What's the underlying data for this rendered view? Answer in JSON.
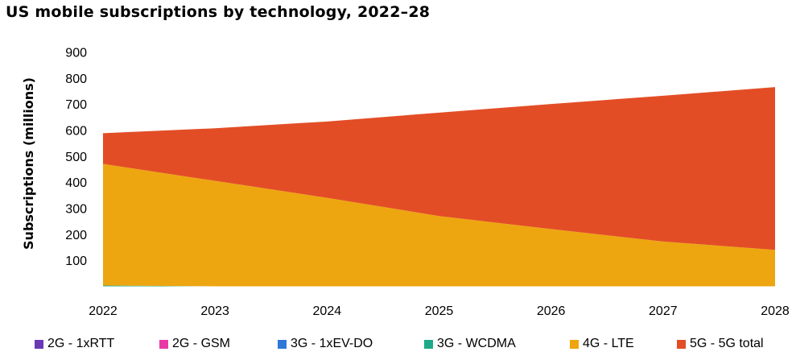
{
  "chart_data": {
    "type": "area",
    "stacked": true,
    "title": "US mobile subscriptions by technology, 2022–28",
    "xlabel": "",
    "ylabel": "Subscriptions (millions)",
    "x": [
      "2022",
      "2023",
      "2024",
      "2025",
      "2026",
      "2027",
      "2028"
    ],
    "ylim": [
      0,
      900
    ],
    "yticks": [
      100,
      200,
      300,
      400,
      500,
      600,
      700,
      800,
      900
    ],
    "grid": false,
    "legend_position": "bottom",
    "series": [
      {
        "name": "2G - 1xRTT",
        "color": "#6a3ab5",
        "values": [
          0,
          0,
          0,
          0,
          0,
          0,
          0
        ]
      },
      {
        "name": "2G - GSM",
        "color": "#e73aa5",
        "values": [
          0,
          0,
          0,
          0,
          0,
          0,
          0
        ]
      },
      {
        "name": "3G - 1xEV-DO",
        "color": "#2f78d8",
        "values": [
          0,
          0,
          0,
          0,
          0,
          0,
          0
        ]
      },
      {
        "name": "3G - WCDMA",
        "color": "#1ea88a",
        "values": [
          3,
          0,
          0,
          0,
          0,
          0,
          0
        ]
      },
      {
        "name": "4G - LTE",
        "color": "#eda610",
        "values": [
          467,
          405,
          340,
          270,
          220,
          172,
          140
        ]
      },
      {
        "name": "5G - 5G total",
        "color": "#e34d26",
        "values": [
          118,
          202,
          293,
          397,
          480,
          560,
          625
        ]
      }
    ]
  }
}
